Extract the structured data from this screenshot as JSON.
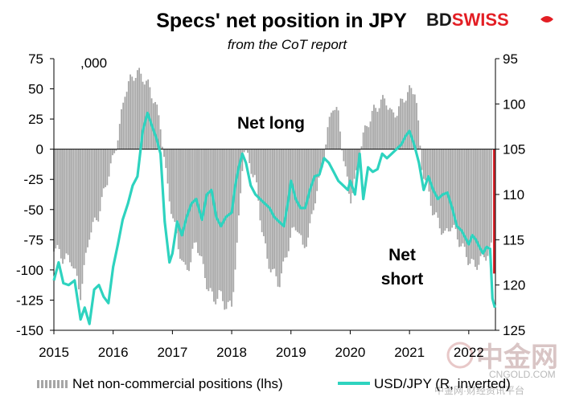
{
  "colors": {
    "bars": "#a6a6a6",
    "line": "#2ed3bf",
    "latest_bar": "#d9232a",
    "axis": "#000000",
    "brand_red": "#e31e24",
    "brand_dark": "#1a1a1a",
    "watermark": "#d9c5c5"
  },
  "brand": {
    "left": "BD",
    "right": "SWISS"
  },
  "watermark": {
    "chinese": "中金网",
    "url": "CNGOLD.COM",
    "tagline": "中金网·财经资讯平台"
  },
  "chart_data": {
    "type": "bar+line",
    "title": "Specs' net position in JPY",
    "subtitle": "from the CoT report",
    "unit_label": ",000",
    "x_ticks": [
      "2015",
      "2016",
      "2017",
      "2018",
      "2019",
      "2020",
      "2021",
      "2022"
    ],
    "x_range": [
      2015.0,
      2022.45
    ],
    "left_axis": {
      "ylim": [
        -150,
        75
      ],
      "ticks": [
        75,
        50,
        25,
        0,
        -25,
        -50,
        -75,
        -100,
        -125,
        -150
      ]
    },
    "right_axis": {
      "ylim": [
        95,
        125
      ],
      "inverted": true,
      "ticks": [
        95,
        100,
        105,
        110,
        115,
        120,
        125
      ]
    },
    "annotations": [
      "Net long",
      "Net",
      "short"
    ],
    "legend": [
      "Net non-commercial positions (lhs)",
      "USD/JPY (R, inverted)"
    ],
    "series": [
      {
        "name": "Net non-commercial positions (lhs)",
        "axis": "left",
        "style": "bars",
        "points": [
          [
            2015.0,
            -80
          ],
          [
            2015.15,
            -90
          ],
          [
            2015.3,
            -92
          ],
          [
            2015.45,
            -120
          ],
          [
            2015.6,
            -70
          ],
          [
            2015.75,
            -55
          ],
          [
            2015.9,
            -25
          ],
          [
            2016.0,
            -8
          ],
          [
            2016.1,
            15
          ],
          [
            2016.2,
            48
          ],
          [
            2016.3,
            58
          ],
          [
            2016.4,
            64
          ],
          [
            2016.5,
            60
          ],
          [
            2016.6,
            52
          ],
          [
            2016.7,
            40
          ],
          [
            2016.8,
            20
          ],
          [
            2016.9,
            -25
          ],
          [
            2017.0,
            -55
          ],
          [
            2017.1,
            -80
          ],
          [
            2017.2,
            -100
          ],
          [
            2017.3,
            -95
          ],
          [
            2017.4,
            -75
          ],
          [
            2017.5,
            -95
          ],
          [
            2017.6,
            -115
          ],
          [
            2017.7,
            -125
          ],
          [
            2017.8,
            -120
          ],
          [
            2017.9,
            -130
          ],
          [
            2018.0,
            -130
          ],
          [
            2018.1,
            -75
          ],
          [
            2018.2,
            2
          ],
          [
            2018.3,
            -12
          ],
          [
            2018.4,
            -25
          ],
          [
            2018.5,
            -62
          ],
          [
            2018.6,
            -92
          ],
          [
            2018.7,
            -102
          ],
          [
            2018.8,
            -112
          ],
          [
            2018.9,
            -92
          ],
          [
            2019.0,
            -72
          ],
          [
            2019.1,
            -62
          ],
          [
            2019.2,
            -82
          ],
          [
            2019.3,
            -72
          ],
          [
            2019.4,
            -42
          ],
          [
            2019.5,
            -22
          ],
          [
            2019.6,
            8
          ],
          [
            2019.7,
            38
          ],
          [
            2019.8,
            28
          ],
          [
            2019.9,
            -12
          ],
          [
            2020.0,
            -42
          ],
          [
            2020.1,
            -22
          ],
          [
            2020.2,
            8
          ],
          [
            2020.3,
            22
          ],
          [
            2020.4,
            32
          ],
          [
            2020.5,
            38
          ],
          [
            2020.6,
            42
          ],
          [
            2020.7,
            28
          ],
          [
            2020.8,
            32
          ],
          [
            2020.9,
            42
          ],
          [
            2021.0,
            48
          ],
          [
            2021.1,
            50
          ],
          [
            2021.2,
            -12
          ],
          [
            2021.3,
            -32
          ],
          [
            2021.4,
            -52
          ],
          [
            2021.5,
            -62
          ],
          [
            2021.6,
            -72
          ],
          [
            2021.7,
            -62
          ],
          [
            2021.8,
            -72
          ],
          [
            2021.9,
            -82
          ],
          [
            2022.0,
            -92
          ],
          [
            2022.1,
            -97
          ],
          [
            2022.2,
            -92
          ],
          [
            2022.3,
            -87
          ],
          [
            2022.38,
            -82
          ]
        ],
        "latest": [
          2022.43,
          -103
        ]
      },
      {
        "name": "USD/JPY (R, inverted)",
        "axis": "right",
        "style": "line",
        "points": [
          [
            2015.0,
            119.5
          ],
          [
            2015.08,
            117.5
          ],
          [
            2015.16,
            119.8
          ],
          [
            2015.25,
            120.0
          ],
          [
            2015.35,
            119.5
          ],
          [
            2015.45,
            123.8
          ],
          [
            2015.52,
            122.5
          ],
          [
            2015.6,
            124.3
          ],
          [
            2015.68,
            120.5
          ],
          [
            2015.76,
            120.0
          ],
          [
            2015.84,
            121.3
          ],
          [
            2015.92,
            122.0
          ],
          [
            2016.0,
            118.0
          ],
          [
            2016.08,
            115.5
          ],
          [
            2016.16,
            112.8
          ],
          [
            2016.25,
            111.0
          ],
          [
            2016.33,
            109.0
          ],
          [
            2016.41,
            108.0
          ],
          [
            2016.5,
            103.0
          ],
          [
            2016.58,
            101.0
          ],
          [
            2016.66,
            102.5
          ],
          [
            2016.73,
            103.8
          ],
          [
            2016.8,
            105.5
          ],
          [
            2016.87,
            113.0
          ],
          [
            2016.95,
            117.5
          ],
          [
            2017.0,
            116.5
          ],
          [
            2017.08,
            113.0
          ],
          [
            2017.16,
            114.5
          ],
          [
            2017.24,
            112.5
          ],
          [
            2017.32,
            111.0
          ],
          [
            2017.4,
            110.5
          ],
          [
            2017.5,
            112.8
          ],
          [
            2017.58,
            110.0
          ],
          [
            2017.66,
            109.5
          ],
          [
            2017.74,
            112.5
          ],
          [
            2017.82,
            113.5
          ],
          [
            2017.9,
            112.5
          ],
          [
            2018.0,
            112.0
          ],
          [
            2018.06,
            109.0
          ],
          [
            2018.12,
            107.0
          ],
          [
            2018.18,
            105.5
          ],
          [
            2018.24,
            106.5
          ],
          [
            2018.32,
            109.0
          ],
          [
            2018.4,
            110.0
          ],
          [
            2018.48,
            110.5
          ],
          [
            2018.56,
            111.0
          ],
          [
            2018.64,
            111.5
          ],
          [
            2018.72,
            112.5
          ],
          [
            2018.8,
            113.0
          ],
          [
            2018.88,
            113.5
          ],
          [
            2018.96,
            110.5
          ],
          [
            2019.0,
            108.5
          ],
          [
            2019.08,
            110.5
          ],
          [
            2019.16,
            111.5
          ],
          [
            2019.24,
            111.5
          ],
          [
            2019.32,
            109.5
          ],
          [
            2019.4,
            108.0
          ],
          [
            2019.48,
            107.8
          ],
          [
            2019.56,
            106.0
          ],
          [
            2019.64,
            106.5
          ],
          [
            2019.72,
            107.5
          ],
          [
            2019.8,
            108.5
          ],
          [
            2019.88,
            109.0
          ],
          [
            2019.96,
            109.5
          ],
          [
            2020.0,
            108.5
          ],
          [
            2020.08,
            110.0
          ],
          [
            2020.16,
            105.5
          ],
          [
            2020.22,
            110.5
          ],
          [
            2020.3,
            107.0
          ],
          [
            2020.38,
            107.5
          ],
          [
            2020.46,
            107.2
          ],
          [
            2020.54,
            105.5
          ],
          [
            2020.62,
            106.0
          ],
          [
            2020.7,
            105.5
          ],
          [
            2020.78,
            105.0
          ],
          [
            2020.86,
            104.5
          ],
          [
            2020.94,
            103.5
          ],
          [
            2021.0,
            103.0
          ],
          [
            2021.08,
            104.5
          ],
          [
            2021.16,
            106.5
          ],
          [
            2021.24,
            109.5
          ],
          [
            2021.32,
            108.0
          ],
          [
            2021.4,
            109.5
          ],
          [
            2021.48,
            110.5
          ],
          [
            2021.56,
            110.0
          ],
          [
            2021.64,
            109.8
          ],
          [
            2021.72,
            111.5
          ],
          [
            2021.8,
            113.5
          ],
          [
            2021.88,
            114.0
          ],
          [
            2021.96,
            115.0
          ],
          [
            2022.0,
            115.5
          ],
          [
            2022.06,
            114.5
          ],
          [
            2022.12,
            115.0
          ],
          [
            2022.18,
            115.8
          ],
          [
            2022.24,
            116.5
          ],
          [
            2022.3,
            115.8
          ],
          [
            2022.36,
            116.0
          ],
          [
            2022.4,
            121.5
          ],
          [
            2022.44,
            122.5
          ]
        ]
      }
    ]
  }
}
